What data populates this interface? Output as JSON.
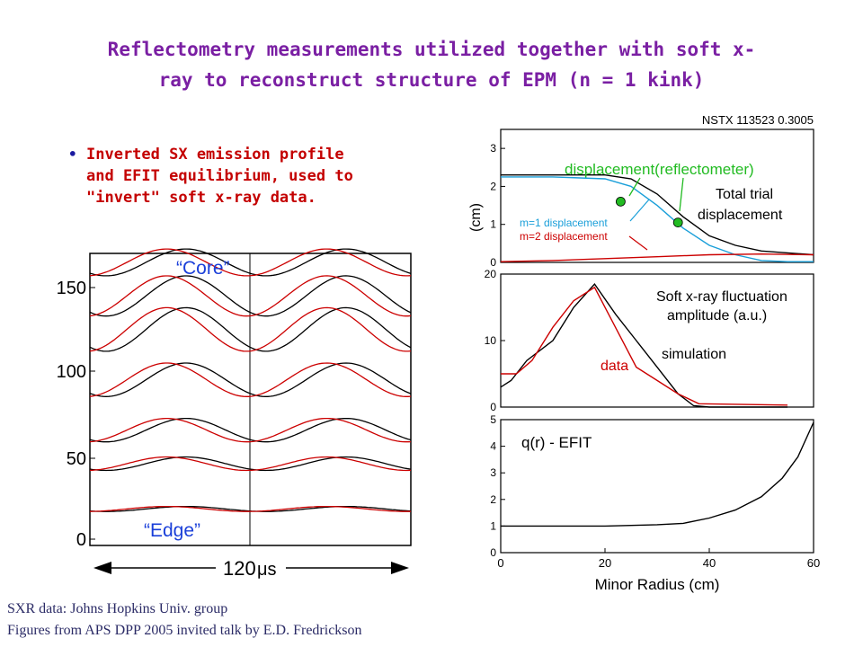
{
  "title": {
    "line1": "Reflectometry measurements utilized together with soft x-",
    "line2": "ray to reconstruct structure of EPM (n = 1 kink)"
  },
  "bullet": {
    "text": "Inverted SX emission profile\nand EFIT equilibrium, used to\n\"invert\" soft x-ray data."
  },
  "credits": {
    "line1": "SXR data: Johns Hopkins Univ. group",
    "line2": "Figures from APS DPP 2005 invited talk by E.D. Fredrickson"
  },
  "colors": {
    "title": "#7a1fa3",
    "bullet_text": "#c40000",
    "red": "#cc0000",
    "cyan": "#1a9fd9",
    "green": "#22bb22",
    "blue_label": "#1a3fd9"
  },
  "chart_data": [
    {
      "type": "line",
      "yticks": [
        "0",
        "50",
        "100",
        "150"
      ],
      "annotations": [
        "“Core”",
        "“Edge”"
      ],
      "time_label": "120",
      "time_unit": "μs",
      "channel_offsets": [
        18,
        45,
        65,
        95,
        125,
        145,
        165
      ],
      "amplitudes": [
        1.5,
        4,
        7,
        10,
        13,
        12,
        8
      ],
      "series": [
        {
          "name": "",
          "color": "#000000",
          "phase": 0.0
        },
        {
          "name": "",
          "color": "#cc0000",
          "phase": 0.12
        }
      ]
    },
    {
      "type": "line",
      "header": "NSTX 113523  0.3005",
      "ylabel": "(cm)",
      "yticks": [
        "0",
        "1",
        "2",
        "3"
      ],
      "ylim": [
        0,
        3.5
      ],
      "xlim": [
        0,
        60
      ],
      "annotations": [
        "displacement(reflectometer)",
        "Total trial",
        "displacement",
        "m=1 displacement",
        "m=2 displacement"
      ],
      "series": [
        {
          "name": "",
          "color": "#000000",
          "x": [
            0,
            10,
            20,
            25,
            30,
            35,
            40,
            45,
            50,
            55,
            60
          ],
          "y": [
            2.3,
            2.3,
            2.3,
            2.2,
            1.8,
            1.2,
            0.7,
            0.45,
            0.3,
            0.25,
            0.2
          ]
        },
        {
          "name": "",
          "color": "#1a9fd9",
          "x": [
            0,
            10,
            20,
            25,
            30,
            35,
            40,
            45,
            50,
            55,
            60
          ],
          "y": [
            2.25,
            2.25,
            2.2,
            2.0,
            1.5,
            0.9,
            0.45,
            0.2,
            0.05,
            0.02,
            0.02
          ]
        },
        {
          "name": "",
          "color": "#cc0000",
          "x": [
            0,
            10,
            20,
            30,
            40,
            50,
            60
          ],
          "y": [
            0.02,
            0.05,
            0.1,
            0.15,
            0.2,
            0.22,
            0.2
          ]
        }
      ],
      "points": {
        "color": "#22bb22",
        "x": [
          23,
          34
        ],
        "y": [
          1.6,
          1.05
        ]
      }
    },
    {
      "type": "line",
      "yticks": [
        "0",
        "10",
        "20"
      ],
      "ylim": [
        0,
        20
      ],
      "xlim": [
        0,
        60
      ],
      "annotations": [
        "Soft x-ray fluctuation",
        "amplitude (a.u.)",
        "simulation",
        "data"
      ],
      "series": [
        {
          "name": "",
          "color": "#000000",
          "x": [
            0,
            2,
            5,
            10,
            14,
            18,
            22,
            26,
            30,
            34,
            37,
            40,
            55
          ],
          "y": [
            3,
            4,
            7,
            10,
            15,
            18.5,
            14,
            10,
            6,
            2,
            0.2,
            0,
            0
          ]
        },
        {
          "name": "",
          "color": "#cc0000",
          "x": [
            0,
            3,
            6,
            10,
            14,
            18,
            22,
            26,
            30,
            34,
            38,
            55
          ],
          "y": [
            5,
            5,
            7,
            12,
            16,
            18,
            12,
            6,
            4,
            2,
            0.5,
            0.3
          ]
        }
      ]
    },
    {
      "type": "line",
      "xlabel": "Minor Radius (cm)",
      "xticks": [
        "0",
        "20",
        "40",
        "60"
      ],
      "yticks": [
        "0",
        "1",
        "2",
        "3",
        "4",
        "5"
      ],
      "ylim": [
        0,
        5
      ],
      "xlim": [
        0,
        60
      ],
      "annotations": [
        "q(r) - EFIT"
      ],
      "series": [
        {
          "name": "",
          "color": "#000000",
          "x": [
            0,
            10,
            20,
            30,
            35,
            40,
            45,
            50,
            54,
            57,
            60
          ],
          "y": [
            1,
            1,
            1,
            1.05,
            1.1,
            1.3,
            1.6,
            2.1,
            2.8,
            3.6,
            4.9
          ]
        }
      ]
    }
  ]
}
